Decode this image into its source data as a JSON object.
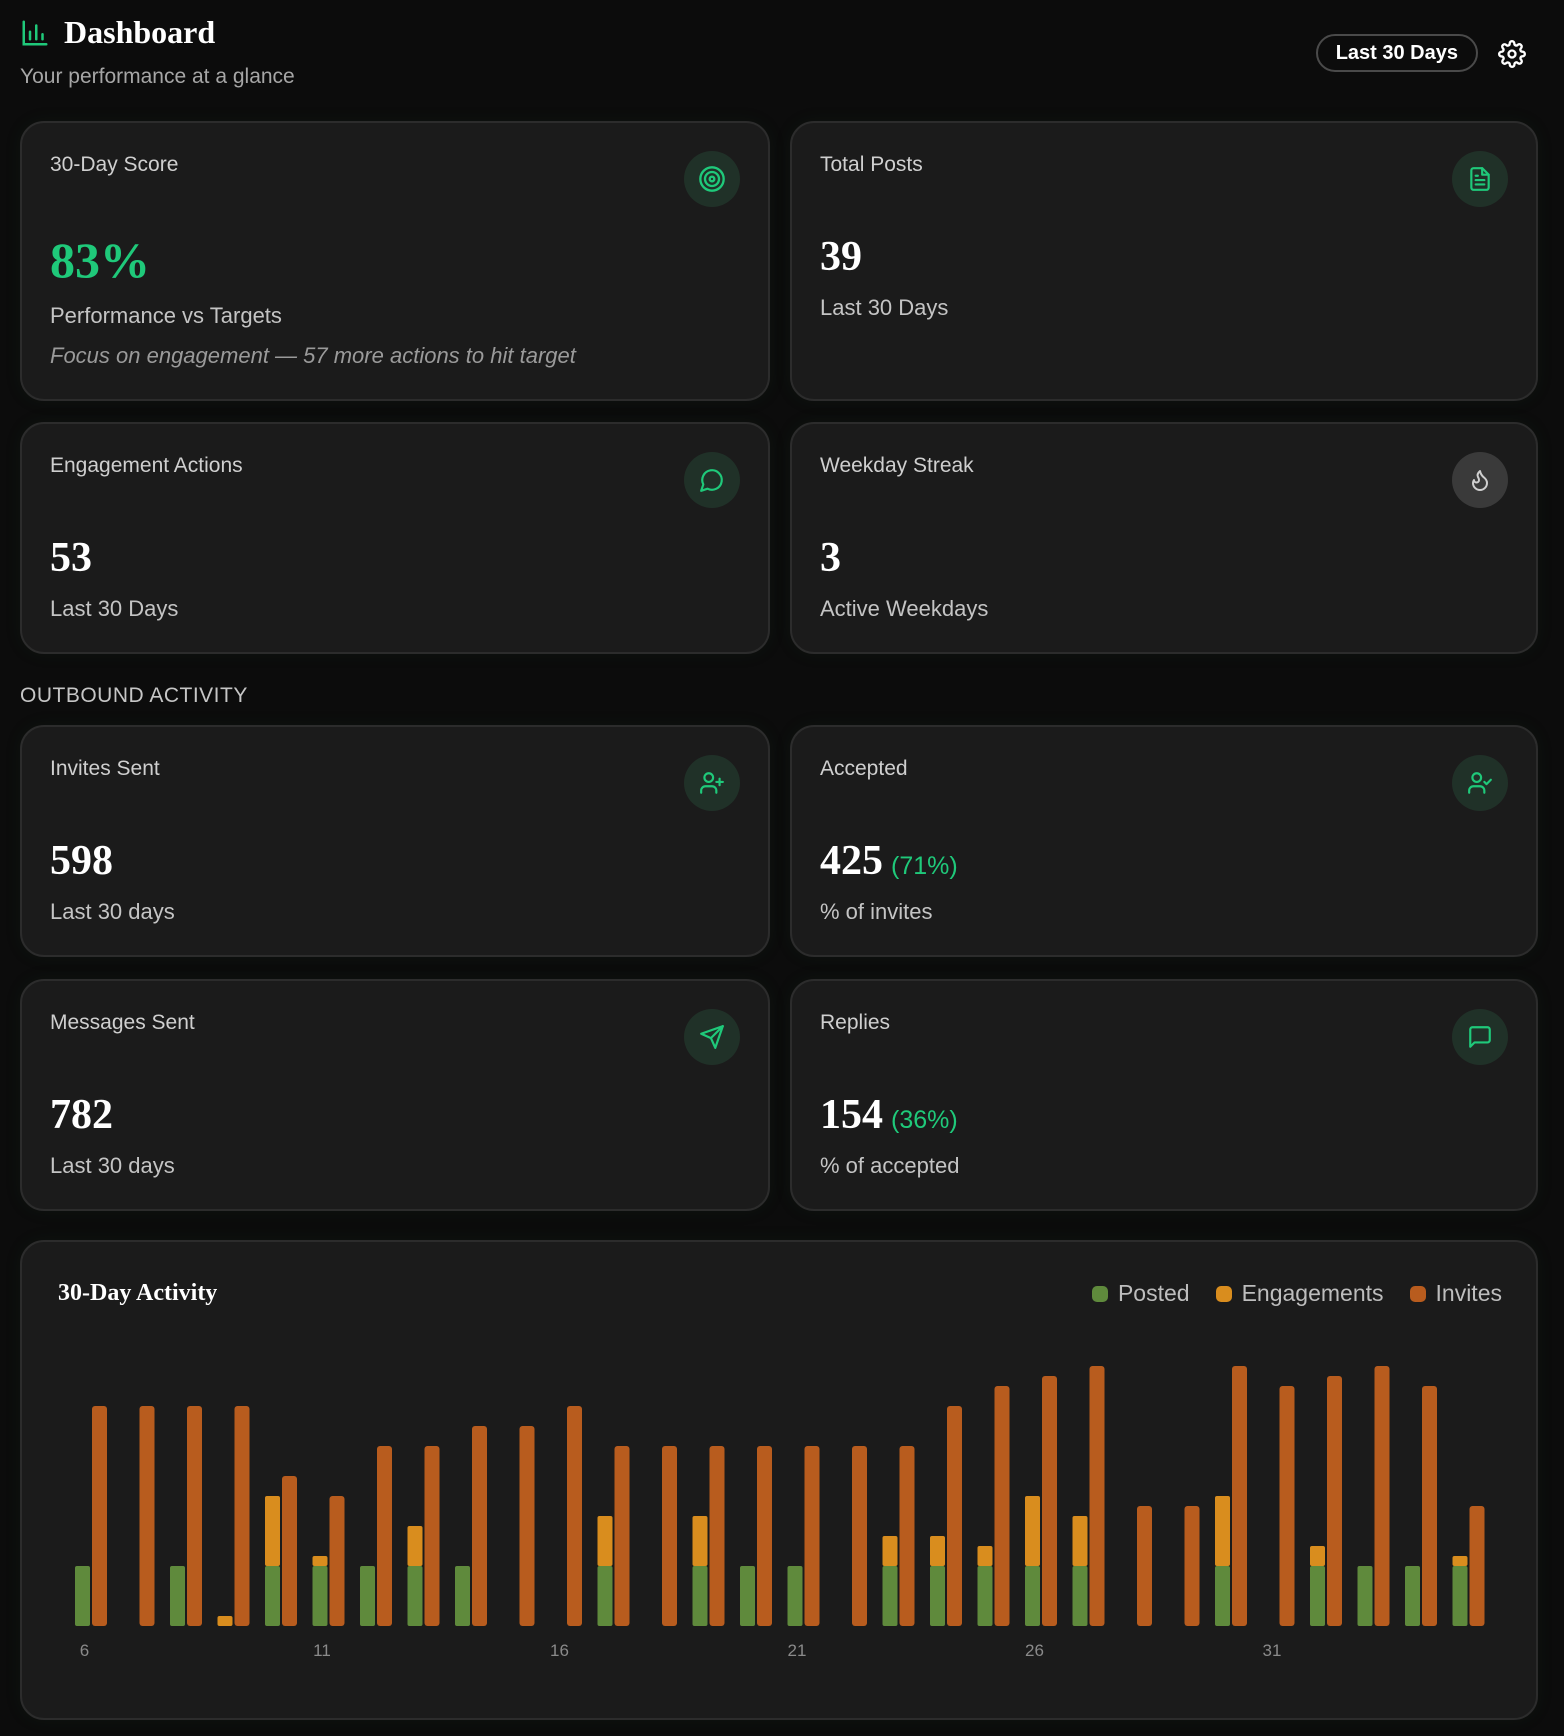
{
  "header": {
    "title": "Dashboard",
    "subtitle": "Your performance at a glance",
    "range_label": "Last 30 Days",
    "logo_icon": "bar-chart-icon",
    "settings_icon": "gear-icon"
  },
  "cards": {
    "score": {
      "label": "30-Day Score",
      "value": "83%",
      "sub": "Performance vs Targets",
      "note": "Focus on engagement — 57 more actions to hit target",
      "icon": "target-icon"
    },
    "posts": {
      "label": "Total Posts",
      "value": "39",
      "sub": "Last 30 Days",
      "icon": "document-icon"
    },
    "engagement": {
      "label": "Engagement Actions",
      "value": "53",
      "sub": "Last 30 Days",
      "icon": "chat-bubble-icon"
    },
    "streak": {
      "label": "Weekday Streak",
      "value": "3",
      "sub": "Active Weekdays",
      "icon": "flame-icon"
    }
  },
  "outbound": {
    "section_title": "OUTBOUND ACTIVITY",
    "invites": {
      "label": "Invites Sent",
      "value": "598",
      "sub": "Last 30 days",
      "icon": "user-plus-icon"
    },
    "accepted": {
      "label": "Accepted",
      "value": "425",
      "pct": "(71%)",
      "sub": "% of invites",
      "icon": "user-check-icon"
    },
    "messages": {
      "label": "Messages Sent",
      "value": "782",
      "sub": "Last 30 days",
      "icon": "send-icon"
    },
    "replies": {
      "label": "Replies",
      "value": "154",
      "pct": "(36%)",
      "sub": "% of accepted",
      "icon": "message-square-icon"
    }
  },
  "colors": {
    "accent": "#1fc97a",
    "posted": "#5f8a3c",
    "engagements": "#d98d1e",
    "invites": "#b85c1e"
  },
  "chart_data": {
    "type": "bar",
    "title": "30-Day Activity",
    "categories": [
      "6",
      "7",
      "8",
      "9",
      "10",
      "11",
      "12",
      "13",
      "14",
      "15",
      "16",
      "17",
      "18",
      "19",
      "20",
      "21",
      "22",
      "23",
      "24",
      "25",
      "26",
      "27",
      "28",
      "29",
      "30",
      "31",
      "32",
      "33",
      "34",
      "35"
    ],
    "tick_labels": [
      "6",
      "11",
      "16",
      "21",
      "26",
      "31"
    ],
    "series": [
      {
        "name": "Posted",
        "stack": "a",
        "values": [
          6,
          0,
          6,
          0,
          6,
          6,
          6,
          6,
          6,
          0,
          0,
          6,
          0,
          6,
          6,
          6,
          0,
          6,
          6,
          6,
          6,
          6,
          0,
          0,
          6,
          0,
          6,
          6,
          6,
          6
        ]
      },
      {
        "name": "Engagements",
        "stack": "a",
        "values": [
          0,
          0,
          0,
          1,
          7,
          1,
          0,
          4,
          0,
          0,
          0,
          5,
          0,
          5,
          0,
          0,
          0,
          3,
          3,
          2,
          7,
          5,
          0,
          0,
          7,
          0,
          2,
          0,
          0,
          1
        ]
      },
      {
        "name": "Invites",
        "stack": "b",
        "values": [
          22,
          22,
          22,
          22,
          15,
          13,
          18,
          18,
          20,
          20,
          22,
          18,
          18,
          18,
          18,
          18,
          18,
          18,
          22,
          24,
          25,
          26,
          12,
          12,
          26,
          24,
          25,
          26,
          24,
          12
        ]
      }
    ],
    "ylim": [
      0,
      28
    ],
    "legend": "top-right",
    "grid": false
  }
}
